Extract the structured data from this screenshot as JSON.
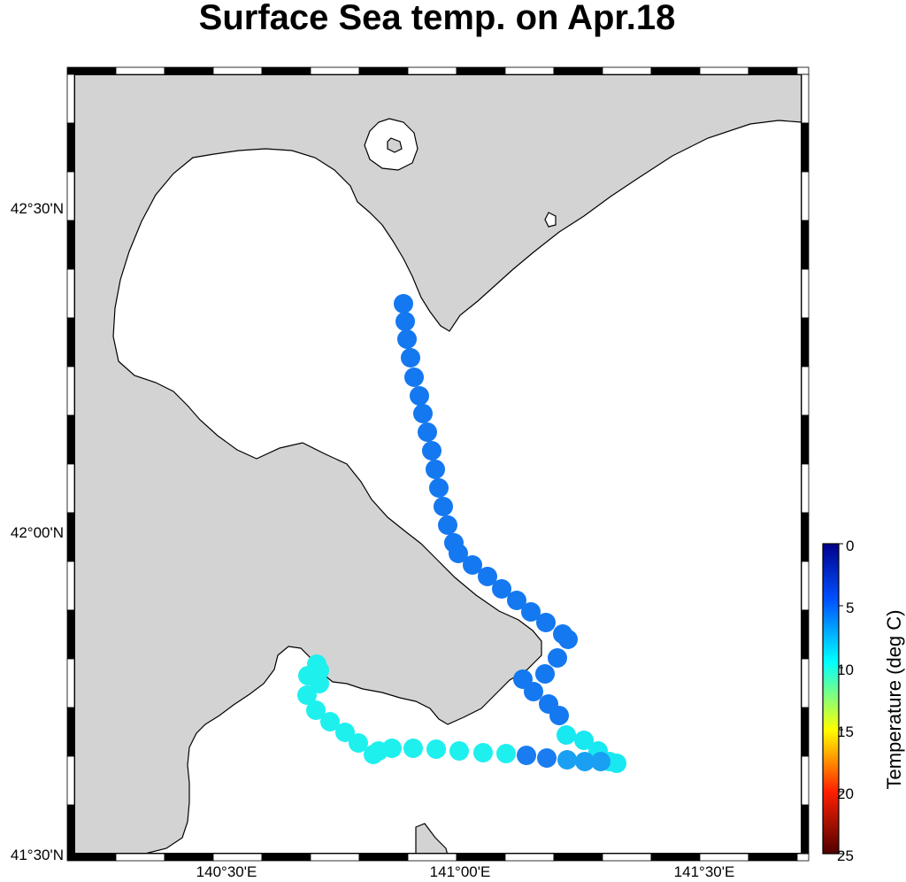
{
  "title": "Surface Sea temp. on Apr.18",
  "map": {
    "land_color": "#d3d3d3",
    "sea_color": "#ffffff",
    "coast_color": "#000000",
    "lon_ticks": [
      {
        "value": 140.5,
        "label": "140°30'E"
      },
      {
        "value": 141.0,
        "label": "141°00'E"
      },
      {
        "value": 141.5,
        "label": "141°30'E"
      }
    ],
    "lat_ticks": [
      {
        "value": 42.5,
        "label": "42°30'N"
      },
      {
        "value": 42.0,
        "label": "42°00'N"
      },
      {
        "value": 41.5,
        "label": "41°30'N"
      }
    ]
  },
  "colorbar": {
    "label": "Temperature (deg C)",
    "ticks": [
      "0",
      "5",
      "10",
      "15",
      "20",
      "25"
    ],
    "range": [
      0,
      25
    ],
    "colors": [
      "#00008b",
      "#0000ff",
      "#00ffff",
      "#ffff00",
      "#ff0000",
      "#8b0000"
    ]
  },
  "track_color_by_temp": {
    "blue_section_temp": 6,
    "cyan_section_temp": 9
  }
}
